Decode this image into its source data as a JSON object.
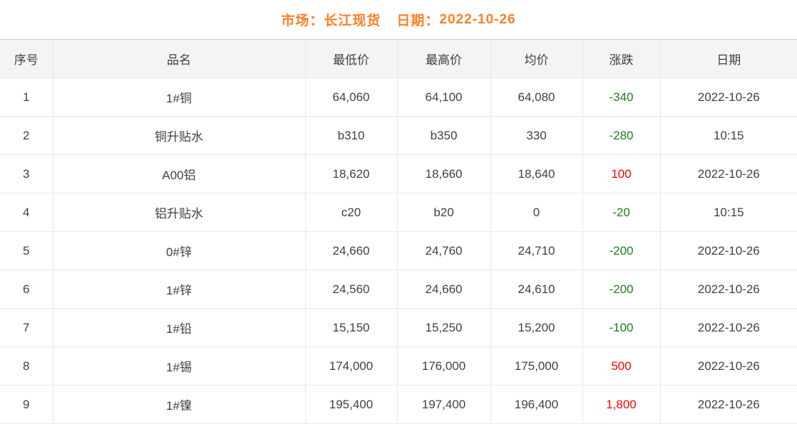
{
  "colors": {
    "accent_orange": "#ff7e26",
    "up_red": "#ff0000",
    "down_green": "#1e7d1e",
    "text": "#3d4045",
    "header_bg": "#f4f4f4",
    "grid_border": "#e7e7e7"
  },
  "header": {
    "market_label": "市场：",
    "market_value": "长江现货",
    "date_label": "日期：",
    "date_value": "2022-10-26"
  },
  "table": {
    "columns": [
      "序号",
      "品名",
      "最低价",
      "最高价",
      "均价",
      "涨跌",
      "日期"
    ],
    "rows": [
      {
        "no": "1",
        "name": "1#铜",
        "low": "64,060",
        "high": "64,100",
        "avg": "64,080",
        "change": "-340",
        "change_dir": "down",
        "date": "2022-10-26"
      },
      {
        "no": "2",
        "name": "铜升贴水",
        "low": "b310",
        "high": "b350",
        "avg": "330",
        "change": "-280",
        "change_dir": "down",
        "date": "10:15"
      },
      {
        "no": "3",
        "name": "A00铝",
        "low": "18,620",
        "high": "18,660",
        "avg": "18,640",
        "change": "100",
        "change_dir": "up",
        "date": "2022-10-26"
      },
      {
        "no": "4",
        "name": "铝升贴水",
        "low": "c20",
        "high": "b20",
        "avg": "0",
        "change": "-20",
        "change_dir": "down",
        "date": "10:15"
      },
      {
        "no": "5",
        "name": "0#锌",
        "low": "24,660",
        "high": "24,760",
        "avg": "24,710",
        "change": "-200",
        "change_dir": "down",
        "date": "2022-10-26"
      },
      {
        "no": "6",
        "name": "1#锌",
        "low": "24,560",
        "high": "24,660",
        "avg": "24,610",
        "change": "-200",
        "change_dir": "down",
        "date": "2022-10-26"
      },
      {
        "no": "7",
        "name": "1#铅",
        "low": "15,150",
        "high": "15,250",
        "avg": "15,200",
        "change": "-100",
        "change_dir": "down",
        "date": "2022-10-26"
      },
      {
        "no": "8",
        "name": "1#锡",
        "low": "174,000",
        "high": "176,000",
        "avg": "175,000",
        "change": "500",
        "change_dir": "up",
        "date": "2022-10-26"
      },
      {
        "no": "9",
        "name": "1#镍",
        "low": "195,400",
        "high": "197,400",
        "avg": "196,400",
        "change": "1,800",
        "change_dir": "up",
        "date": "2022-10-26"
      }
    ]
  }
}
